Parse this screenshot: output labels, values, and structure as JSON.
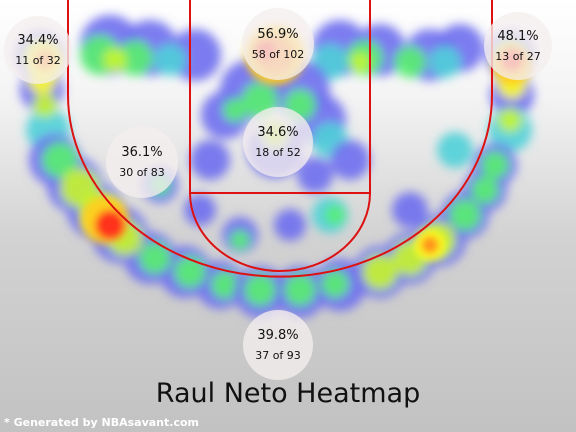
{
  "chart_data": {
    "type": "heatmap",
    "title": "Raul Neto Heatmap",
    "footer": "* Generated by NBAsavant.com",
    "zones": [
      {
        "name": "left-corner-three",
        "pct": "34.4%",
        "made": 11,
        "attempts": 32,
        "count_label": "11 of 32"
      },
      {
        "name": "restricted-area",
        "pct": "56.9%",
        "made": 58,
        "attempts": 102,
        "count_label": "58 of 102"
      },
      {
        "name": "right-corner-three",
        "pct": "48.1%",
        "made": 13,
        "attempts": 27,
        "count_label": "13 of 27"
      },
      {
        "name": "left-midrange",
        "pct": "36.1%",
        "made": 30,
        "attempts": 83,
        "count_label": "30 of 83"
      },
      {
        "name": "paint-midrange",
        "pct": "34.6%",
        "made": 18,
        "attempts": 52,
        "count_label": "18 of 52"
      },
      {
        "name": "above-break-three",
        "pct": "39.8%",
        "made": 37,
        "attempts": 93,
        "count_label": "37 of 93"
      }
    ],
    "color_scale": [
      "#6f6ff0",
      "#4fd0d8",
      "#58f070",
      "#c6f52c",
      "#ffff20",
      "#ffd020",
      "#ff8a20",
      "#ff2a1a"
    ],
    "hotspots": [
      {
        "region": "rim",
        "level": 1.0
      },
      {
        "region": "left-wing-three",
        "level": 0.95
      },
      {
        "region": "right-corner-three",
        "level": 0.9
      },
      {
        "region": "left-corner-three",
        "level": 0.85
      },
      {
        "region": "right-wing-three",
        "level": 0.8
      }
    ]
  }
}
